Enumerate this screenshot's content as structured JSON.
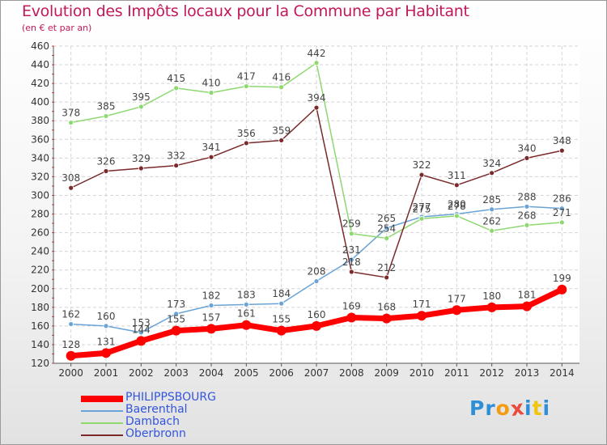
{
  "title": "Evolution des Impôts locaux pour la Commune par Habitant",
  "subtitle": "(en € et par an)",
  "logo": {
    "text": "Proxiti",
    "letters": [
      "P",
      "r",
      "o",
      "x",
      "i",
      "t",
      "i"
    ],
    "colors": [
      "#2f8fd6",
      "#2f8fd6",
      "#f39c12",
      "#e74c3c",
      "#2f8fd6",
      "#f1c40f",
      "#2f8fd6"
    ]
  },
  "chart_data": {
    "type": "line",
    "x": [
      "2000",
      "2001",
      "2002",
      "2003",
      "2004",
      "2005",
      "2006",
      "2007",
      "2008",
      "2009",
      "2010",
      "2011",
      "2012",
      "2013",
      "2014"
    ],
    "ylim": [
      120,
      460
    ],
    "yticks": [
      120,
      140,
      160,
      180,
      200,
      220,
      240,
      260,
      280,
      300,
      320,
      340,
      360,
      380,
      400,
      420,
      440,
      460
    ],
    "grid": true,
    "legend_position": "bottom-left",
    "series": [
      {
        "name": "PHILIPPSBOURG",
        "color": "#ff0000",
        "values": [
          128,
          131,
          144,
          155,
          157,
          161,
          155,
          160,
          169,
          168,
          171,
          177,
          180,
          181,
          199
        ],
        "labels": [
          "128",
          "131",
          "144",
          "155",
          "157",
          "161",
          "155",
          "160",
          "169",
          "168",
          "171",
          "177",
          "180",
          "181",
          "199"
        ]
      },
      {
        "name": "Baerenthal",
        "color": "#6aa3d5",
        "values": [
          162,
          160,
          153,
          173,
          182,
          183,
          184,
          208,
          231,
          265,
          277,
          280,
          285,
          288,
          286
        ],
        "labels": [
          "162",
          "160",
          "153",
          "173",
          "182",
          "183",
          "184",
          "208",
          "231",
          "265",
          "277",
          "280",
          "285",
          "288",
          "286"
        ]
      },
      {
        "name": "Dambach",
        "color": "#8ed870",
        "values": [
          378,
          385,
          395,
          415,
          410,
          417,
          416,
          442,
          259,
          254,
          275,
          278,
          262,
          268,
          271
        ],
        "labels": [
          "378",
          "385",
          "395",
          "415",
          "410",
          "417",
          "416",
          "442",
          "259",
          "254",
          "275",
          "278",
          "262",
          "268",
          "271"
        ]
      },
      {
        "name": "Oberbronn",
        "color": "#7a2a2a",
        "values": [
          308,
          326,
          329,
          332,
          341,
          356,
          359,
          394,
          218,
          212,
          322,
          311,
          324,
          340,
          348
        ],
        "labels": [
          "308",
          "326",
          "329",
          "332",
          "341",
          "356",
          "359",
          "394",
          "218",
          "212",
          "322",
          "311",
          "324",
          "340",
          "348"
        ]
      }
    ]
  }
}
